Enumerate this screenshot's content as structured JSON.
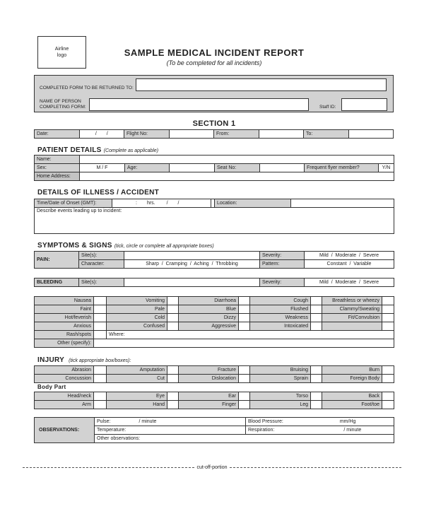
{
  "logo": {
    "line1": "Airline",
    "line2": "logo"
  },
  "header": {
    "title": "SAMPLE MEDICAL INCIDENT REPORT",
    "subtitle": "(To be completed for all incidents)"
  },
  "top": {
    "return_label": "COMPLETED FORM TO BE RETURNED TO:",
    "name_label_1": "NAME OF PERSON",
    "name_label_2": "COMPLETING FORM:",
    "staff_label": "Staff ID:",
    "return_value": "",
    "name_value": "",
    "staff_value": ""
  },
  "section1": {
    "title": "SECTION 1",
    "date_label": "Date:",
    "date_value": "/ /",
    "flight_label": "Flight No:",
    "from_label": "From:",
    "to_label": "To:"
  },
  "patient": {
    "heading": "PATIENT DETAILS",
    "note": "(Complete as applicable)",
    "name_label": "Name:",
    "sex_label": "Sex:",
    "sex_value": "M / F",
    "age_label": "Age:",
    "seat_label": "Seat No:",
    "flyer_label": "Frequent flyer member?",
    "flyer_value": "Y/N",
    "address_label": "Home Address:"
  },
  "illness": {
    "heading": "DETAILS OF ILLNESS / ACCIDENT",
    "onset_label": "Time/Date of Onset (GMT):",
    "onset_colon": ":",
    "onset_hrs": "hrs.",
    "onset_date": "/ /",
    "location_label": "Location:",
    "describe_label": "Describe events leading up to incident:"
  },
  "symptoms": {
    "heading": "SYMPTOMS & SIGNS",
    "note": "(tick, circle or complete all appropriate boxes)",
    "pain_label": "PAIN:",
    "site_label": "Site(s):",
    "severity_label": "Severity:",
    "severity_options": "Mild  /  Moderate  /  Severe",
    "character_label": "Character:",
    "character_options": "Sharp  /  Cramping  /  Aching  /  Throbbing",
    "pattern_label": "Pattern:",
    "pattern_options": "Constant  /  Variable",
    "bleeding_label": "BLEEDING",
    "grid": [
      [
        "Nausea",
        "Vomiting",
        "Diarrhoea",
        "Cough",
        "Breathless or wheezy"
      ],
      [
        "Faint",
        "Pale",
        "Blue",
        "Flushed",
        "Clammy/Sweating"
      ],
      [
        "Hot/feverish",
        "Cold",
        "Dizzy",
        "Weakness",
        "Fit/Convulsion"
      ],
      [
        "Anxious",
        "Confused",
        "Aggressive",
        "Intoxicated",
        ""
      ]
    ],
    "rash_label": "Rash/spots",
    "where_label": "Where:",
    "other_label": "Other (specify):"
  },
  "injury": {
    "heading": "INJURY",
    "note": "(tick appropriate box/boxes):",
    "grid": [
      [
        "Abrasion",
        "Amputation",
        "Fracture",
        "Bruising",
        "Burn"
      ],
      [
        "Concussion",
        "Cut",
        "Dislocation",
        "Sprain",
        "Foreign Body"
      ]
    ],
    "body_heading": "Body Part",
    "body_grid": [
      [
        "Head/neck",
        "Eye",
        "Ear",
        "Torso",
        "Back"
      ],
      [
        "Arm",
        "Hand",
        "Finger",
        "Leg",
        "Foot/toe"
      ]
    ]
  },
  "observations": {
    "label": "OBSERVATIONS:",
    "pulse_label": "Pulse:",
    "pulse_unit": "/ minute",
    "bp_label": "Blood Pressure:",
    "bp_unit": "mm/Hg",
    "temp_label": "Temperature:",
    "resp_label": "Respiration:",
    "resp_unit": "/ minute",
    "other_label": "Other observations:"
  },
  "footer": {
    "cut_label": "cut-off-portion"
  },
  "colors": {
    "label_fill": "#d2d2d2",
    "border": "#333333"
  }
}
